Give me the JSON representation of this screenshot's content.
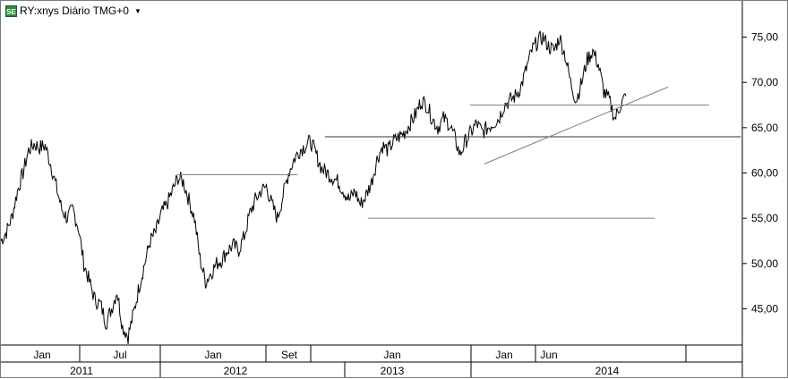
{
  "header": {
    "logo_text": "SE",
    "title": "RY:xnys Diário TMG+0",
    "dropdown_icon": "caret-down-icon"
  },
  "colors": {
    "price": "#000000",
    "trendline": "#808080",
    "grid": "#c0c0c0",
    "background": "#ffffff"
  },
  "chart_data": {
    "type": "line",
    "title": "RY:xnys Diário TMG+0",
    "ylim": [
      41,
      79
    ],
    "y_ticks": [
      "45,00",
      "50,00",
      "55,00",
      "60,00",
      "65,00",
      "70,00",
      "75,00"
    ],
    "y_tick_values": [
      45,
      50,
      55,
      60,
      65,
      70,
      75
    ],
    "x_month_labels": [
      "Jan",
      "Jul",
      "Jan",
      "Set",
      "Jan",
      "Jan",
      "Jun"
    ],
    "x_year_labels": [
      "2011",
      "2012",
      "2013",
      "2014"
    ],
    "series": [
      {
        "values": [
          52.5,
          53.5,
          55.2,
          58.0,
          60.0,
          62.5,
          63.2,
          62.8,
          63.0,
          61.0,
          58.5,
          56.0,
          55.0,
          56.0,
          54.0,
          50.0,
          48.0,
          46.0,
          45.5,
          43.5,
          45.0,
          47.0,
          43.0,
          42.0,
          44.5,
          47.5,
          50.0,
          52.5,
          53.5,
          55.5,
          56.5,
          58.0,
          59.5,
          59.0,
          57.0,
          55.0,
          50.5,
          48.0,
          49.0,
          50.0,
          50.5,
          51.5,
          52.0,
          51.5,
          53.0,
          55.5,
          57.0,
          58.0,
          58.5,
          56.5,
          55.0,
          57.5,
          60.0,
          61.5,
          62.5,
          63.0,
          63.5,
          62.0,
          60.5,
          60.0,
          59.5,
          59.0,
          58.0,
          57.0,
          58.0,
          56.5,
          57.5,
          59.0,
          61.5,
          63.0,
          62.5,
          63.5,
          64.0,
          64.5,
          65.5,
          66.5,
          68.0,
          67.5,
          66.0,
          65.0,
          66.0,
          65.5,
          64.0,
          62.0,
          63.5,
          64.5,
          65.5,
          64.5,
          65.0,
          65.5,
          66.0,
          67.5,
          68.0,
          68.5,
          69.5,
          71.5,
          73.5,
          74.5,
          75.0,
          74.0,
          73.5,
          75.0,
          73.0,
          70.0,
          68.0,
          70.0,
          72.5,
          73.5,
          72.0,
          69.0,
          68.0,
          66.0,
          67.5,
          68.5
        ]
      }
    ],
    "horizontal_lines": [
      {
        "y": 59.8,
        "x_from": 0.237,
        "x_to": 0.4
      },
      {
        "y": 64.0,
        "x_from": 0.437,
        "x_to": 0.998
      },
      {
        "y": 55.0,
        "x_from": 0.495,
        "x_to": 0.882
      },
      {
        "y": 67.5,
        "x_from": 0.633,
        "x_to": 0.955
      }
    ],
    "trendline": {
      "x1": 0.652,
      "y1": 61.0,
      "x2": 0.9,
      "y2": 69.5
    },
    "grid": false,
    "legend": "none"
  }
}
